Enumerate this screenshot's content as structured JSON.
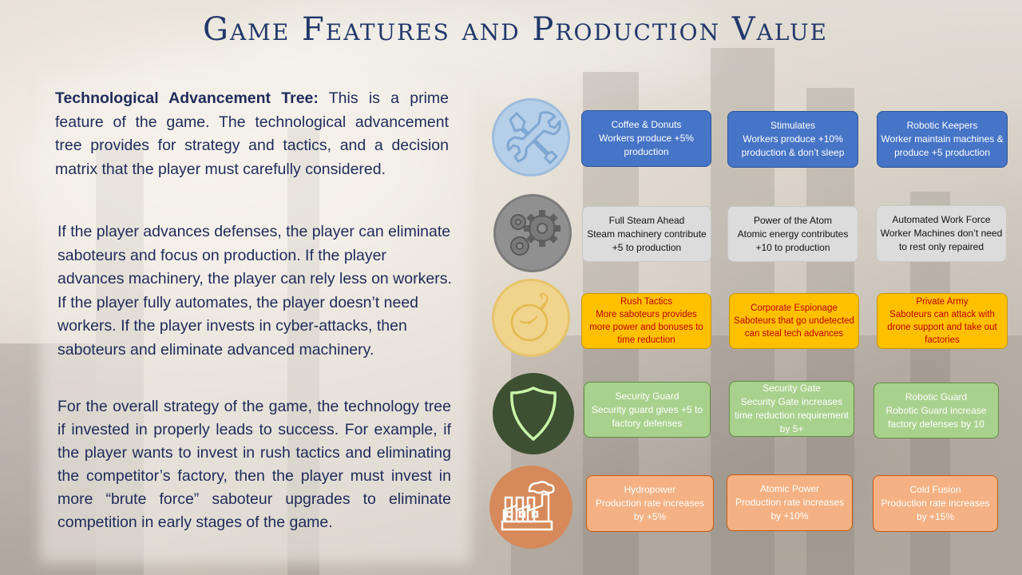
{
  "title": "Game Features and Production Value",
  "left_text": {
    "p1_heading": "Technological Advancement Tree:",
    "p1_body": " This is a prime feature of the game. The technological advancement tree provides for strategy and tactics, and a decision matrix that the player must carefully considered.",
    "p2": "If the player advances defenses, the player can eliminate saboteurs and focus on production.  If the player advances machinery, the player can rely less on workers.  If the player fully automates, the player doesn’t need workers.  If the player invests in cyber-attacks, then saboteurs and eliminate advanced machinery.",
    "p3": "For the overall strategy of the game, the technology tree if invested in properly leads to success. For example, if the player wants to invest in rush tactics and eliminating the competitor’s factory, then the player must invest in more “brute force” saboteur upgrades to eliminate competition in early stages of the game."
  },
  "rows": [
    {
      "icon": "wrench-icon",
      "color": "#4674c6",
      "items": [
        {
          "name": "Coffee & Donuts",
          "desc": "Workers produce +5% production"
        },
        {
          "name": "Stimulates",
          "desc": "Workers produce +10% production & don’t sleep"
        },
        {
          "name": "Robotic Keepers",
          "desc": "Worker maintain machines & produce +5 production"
        }
      ]
    },
    {
      "icon": "gears-icon",
      "color": "#dcdcdc",
      "items": [
        {
          "name": "Full Steam Ahead",
          "desc": "Steam machinery contribute +5 to production"
        },
        {
          "name": "Power of the Atom",
          "desc": "Atomic energy contributes +10 to production"
        },
        {
          "name": "Automated Work Force",
          "desc": "Worker Machines don’t need to rest only repaired"
        }
      ]
    },
    {
      "icon": "bomb-icon",
      "color": "#ffc000",
      "items": [
        {
          "name": "Rush Tactics",
          "desc": "More saboteurs provides more power and bonuses to time reduction"
        },
        {
          "name": "Corporate Espionage",
          "desc": "Saboteurs that go undetected  can steal tech advances"
        },
        {
          "name": "Private Army",
          "desc": "Saboteurs can attack with drone support and take out factories"
        }
      ]
    },
    {
      "icon": "shield-icon",
      "color": "#a9d18e",
      "items": [
        {
          "name": "Security Guard",
          "desc": "Security guard gives +5 to factory defenses"
        },
        {
          "name": "Security Gate",
          "desc": "Security Gate increases time reduction requirement by 5+"
        },
        {
          "name": "Robotic Guard",
          "desc": "Robotic Guard increase factory defenses by 10"
        }
      ]
    },
    {
      "icon": "factory-icon",
      "color": "#f4b183",
      "items": [
        {
          "name": "Hydropower",
          "desc": "Production rate increases by +5%"
        },
        {
          "name": "Atomic Power",
          "desc": "Production rate increases by +10%"
        },
        {
          "name": "Cold Fusion",
          "desc": "Production  rate increases by +15%"
        }
      ]
    }
  ]
}
